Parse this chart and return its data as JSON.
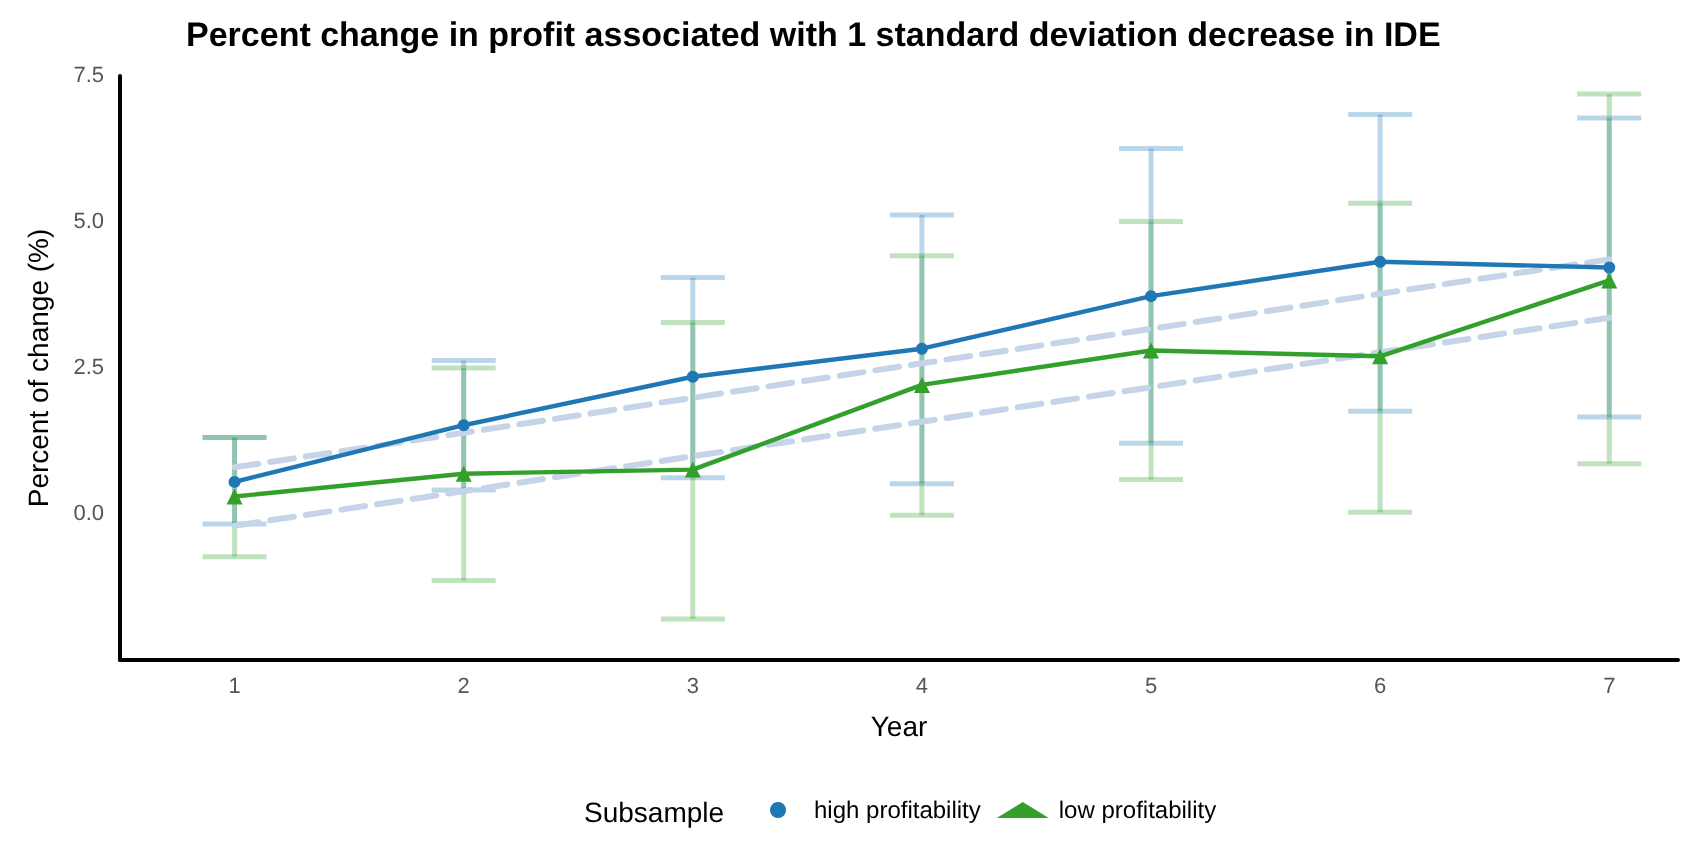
{
  "chart_data": {
    "type": "line",
    "title": "Percent change in profit associated with 1 standard deviation decrease in IDE",
    "xlabel": "Year",
    "ylabel": "Percent of change (%)",
    "legend_title": "Subsample",
    "x": [
      1,
      2,
      3,
      4,
      5,
      6,
      7
    ],
    "series": [
      {
        "name": "high profitability",
        "color": "#1f78b4",
        "marker": "circle",
        "values": [
          0.55,
          1.52,
          2.35,
          2.83,
          3.73,
          4.32,
          4.22
        ],
        "errors": [
          [
            -0.17,
            1.31
          ],
          [
            0.41,
            2.63
          ],
          [
            0.62,
            4.05
          ],
          [
            0.52,
            5.12
          ],
          [
            1.21,
            6.26
          ],
          [
            1.76,
            6.84
          ],
          [
            1.66,
            6.78
          ]
        ]
      },
      {
        "name": "low profitability",
        "color": "#33a02c",
        "marker": "triangle",
        "values": [
          0.3,
          0.69,
          0.76,
          2.21,
          2.8,
          2.7,
          4.0
        ],
        "errors": [
          [
            -0.73,
            1.31
          ],
          [
            -1.14,
            2.5
          ],
          [
            -1.8,
            3.28
          ],
          [
            -0.02,
            4.42
          ],
          [
            0.59,
            5.01
          ],
          [
            0.03,
            5.32
          ],
          [
            0.86,
            7.19
          ]
        ]
      },
      {
        "type": "line",
        "color": "#c6d4ea",
        "line_style": "dashed",
        "marker": "none",
        "values": [
          0.8,
          1.39,
          1.99,
          2.58,
          3.17,
          3.77,
          4.36
        ]
      },
      {
        "type": "line",
        "color": "#c6d4ea",
        "line_style": "dashed",
        "marker": "none",
        "values": [
          -0.2,
          0.39,
          0.99,
          1.58,
          2.17,
          2.77,
          3.36
        ]
      }
    ],
    "xlim": [
      0.5,
      7.3
    ],
    "xticks": [
      1,
      2,
      3,
      4,
      5,
      6,
      7
    ],
    "ylim": [
      -2.5,
      7.5
    ],
    "yticks": [
      {
        "value": 0,
        "label": "0.0"
      },
      2.5,
      {
        "value": 5,
        "label": "5.0"
      },
      7.5
    ],
    "grid": false,
    "legend": "bottom"
  }
}
